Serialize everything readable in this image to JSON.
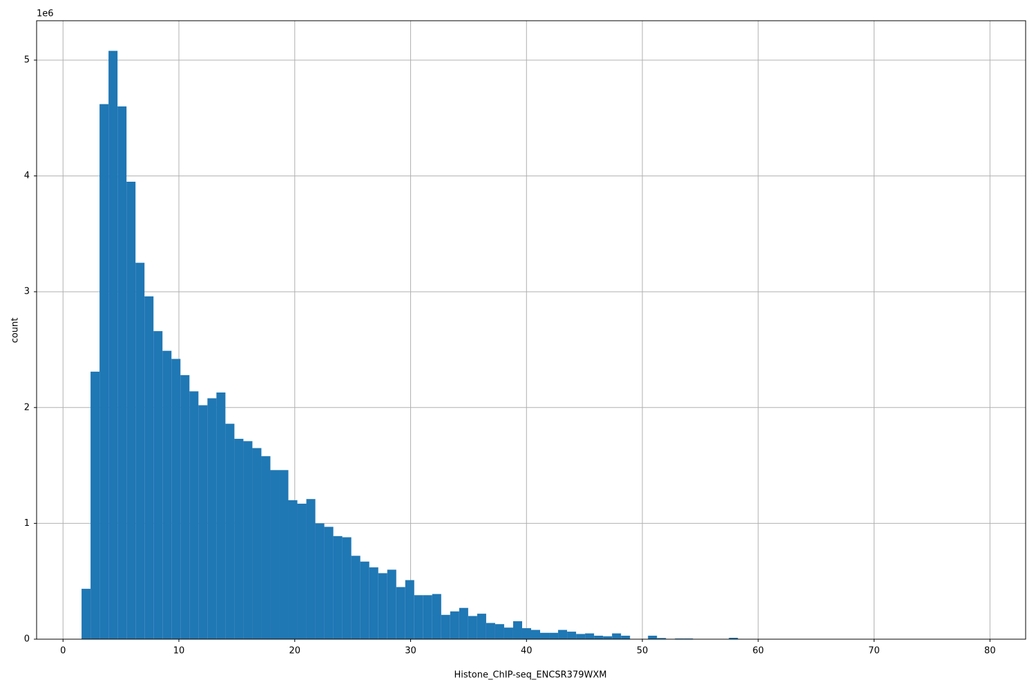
{
  "chart_data": {
    "type": "histogram",
    "xlabel": "Histone_ChIP-seq_ENCSR379WXM",
    "ylabel": "count",
    "y_offset_label": "1e6",
    "color": "#1f77b4",
    "grid": true,
    "bins": [
      1.6,
      2.376,
      3.152,
      3.928,
      4.704,
      5.48,
      6.256,
      7.032,
      7.808,
      8.584,
      9.36,
      10.136,
      10.912,
      11.688,
      12.464,
      13.24,
      14.016,
      14.792,
      15.568,
      16.344,
      17.12,
      17.896,
      18.672,
      19.448,
      20.224,
      21.0,
      21.776,
      22.552,
      23.328,
      24.104,
      24.88,
      25.656,
      26.432,
      27.208,
      27.984,
      28.76,
      29.536,
      30.312,
      31.088,
      31.864,
      32.64,
      33.416,
      34.192,
      34.968,
      35.744,
      36.52,
      37.296,
      38.072,
      38.848,
      39.624,
      40.4,
      41.176,
      41.952,
      42.728,
      43.504,
      44.28,
      45.056,
      45.832,
      46.608,
      47.384,
      48.16,
      48.936,
      49.712,
      50.488,
      51.264,
      52.04,
      52.816,
      53.592,
      54.368,
      55.144,
      55.92,
      56.696,
      57.472,
      58.248,
      59.024,
      59.8,
      60.576,
      61.352,
      62.128,
      62.904,
      63.68,
      64.456,
      65.232,
      66.008,
      66.784,
      67.56,
      68.336,
      69.112,
      69.888,
      70.664,
      71.44,
      72.216,
      72.992,
      73.768,
      74.544,
      75.32,
      76.096,
      76.872,
      77.648,
      78.424,
      79.2
    ],
    "values": [
      435000,
      2310000,
      4620000,
      5080000,
      4600000,
      3950000,
      3250000,
      2960000,
      2660000,
      2490000,
      2420000,
      2280000,
      2140000,
      2020000,
      2080000,
      2130000,
      1860000,
      1730000,
      1710000,
      1650000,
      1580000,
      1460000,
      1460000,
      1200000,
      1170000,
      1210000,
      1000000,
      970000,
      890000,
      880000,
      720000,
      670000,
      620000,
      570000,
      600000,
      450000,
      510000,
      380000,
      380000,
      390000,
      210000,
      240000,
      270000,
      200000,
      220000,
      140000,
      130000,
      100000,
      155000,
      95000,
      80000,
      55000,
      55000,
      80000,
      65000,
      45000,
      50000,
      30000,
      25000,
      50000,
      30000,
      2000,
      3000,
      30000,
      10000,
      2000,
      6000,
      6000,
      2000,
      1000,
      1000,
      1000,
      12000,
      1000,
      0,
      0,
      0,
      0,
      0,
      0,
      0,
      0,
      0,
      0,
      0,
      0,
      0,
      0,
      0,
      0,
      0,
      0,
      0,
      0,
      0,
      0,
      0,
      0,
      0,
      500
    ],
    "xlim": [
      -2.28,
      83.08
    ],
    "ylim": [
      0,
      5340000
    ],
    "xticks": [
      0,
      10,
      20,
      30,
      40,
      50,
      60,
      70,
      80
    ],
    "yticks": [
      0,
      {
        "value": 1000000,
        "label": "1"
      },
      {
        "value": 2000000,
        "label": "2"
      },
      {
        "value": 3000000,
        "label": "3"
      },
      {
        "value": 4000000,
        "label": "4"
      },
      {
        "value": 5000000,
        "label": "5"
      }
    ]
  }
}
